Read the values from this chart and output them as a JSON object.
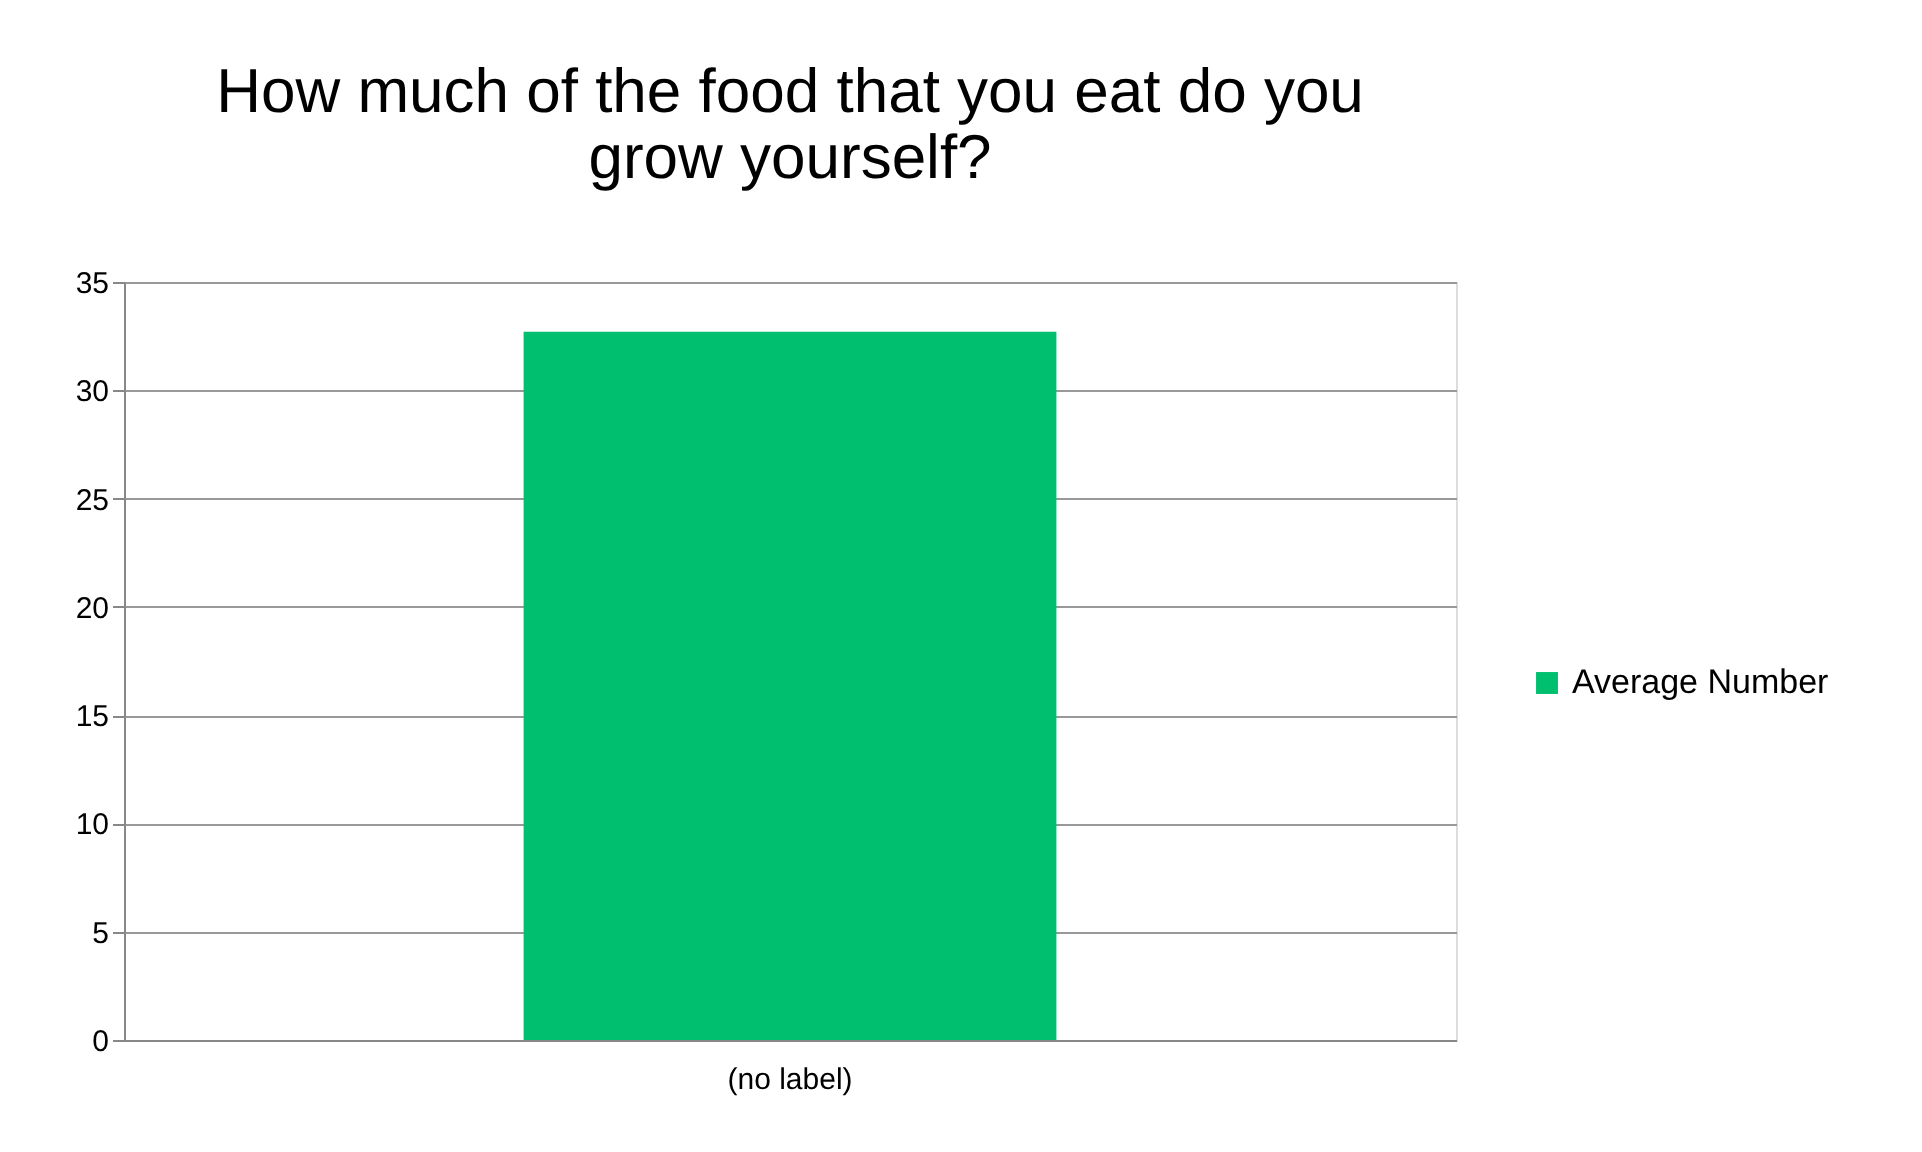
{
  "chart_data": {
    "type": "bar",
    "title": "How much of the food that you eat do you grow yourself?",
    "categories": [
      "(no label)"
    ],
    "series": [
      {
        "name": "Average Number",
        "color": "#00bf6f",
        "values": [
          32.7
        ]
      }
    ],
    "ylim": [
      0,
      35
    ],
    "yticks": [
      0,
      5,
      10,
      15,
      20,
      25,
      30,
      35
    ],
    "grid": "y",
    "legend": "right"
  }
}
